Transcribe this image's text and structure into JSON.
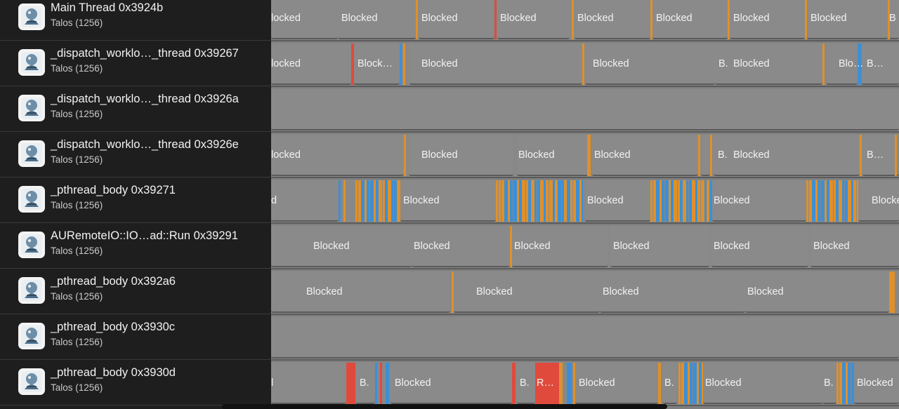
{
  "colors": {
    "sidebar_bg": "#1e1e1e",
    "lane_bg": "#888888",
    "blocked_segment": "#8a8a8a",
    "orange": "#e0902a",
    "blue": "#3c8fd6",
    "red": "#e04a3c",
    "white_text": "#f2f2f2"
  },
  "threads": [
    {
      "name": "Main Thread  0x3924b",
      "process": "Talos (1256)"
    },
    {
      "name": "_dispatch_worklo…_thread  0x39267",
      "process": "Talos (1256)"
    },
    {
      "name": "_dispatch_worklo…_thread  0x3926a",
      "process": "Talos (1256)"
    },
    {
      "name": "_dispatch_worklo…_thread  0x3926e",
      "process": "Talos (1256)"
    },
    {
      "name": "_pthread_body  0x39271",
      "process": "Talos (1256)"
    },
    {
      "name": "AURemoteIO::IO…ad::Run  0x39291",
      "process": "Talos (1256)"
    },
    {
      "name": "_pthread_body  0x392a6",
      "process": "Talos (1256)"
    },
    {
      "name": "_pthread_body  0x3930c",
      "process": "Talos (1256)"
    },
    {
      "name": "_pthread_body  0x3930d",
      "process": "Talos (1256)"
    }
  ],
  "lanes": [
    {
      "labels": [
        "locked",
        "Blocked",
        "Blocked",
        "Blocked",
        "Blocked",
        "Blocked",
        "Blocked",
        "Blocked",
        "B"
      ]
    },
    {
      "labels": [
        "locked",
        "Block…",
        "Blocked",
        "Blocked",
        "B.",
        "Blocked",
        "Blo…",
        "B…"
      ]
    },
    {
      "labels": []
    },
    {
      "labels": [
        "locked",
        "Blocked",
        "Blocked",
        "Blocked",
        "B.",
        "Blocked",
        "B…"
      ]
    },
    {
      "labels": [
        "d",
        "Blocked",
        "Blocked",
        "Blocked",
        "Blocke"
      ]
    },
    {
      "labels": [
        "Blocked",
        "Blocked",
        "Blocked",
        "Blocked",
        "Blocked",
        "Blocked"
      ]
    },
    {
      "labels": [
        "Blocked",
        "Blocked",
        "Blocked",
        "Blocked"
      ]
    },
    {
      "labels": []
    },
    {
      "labels": [
        "l",
        "B.",
        "Blocked",
        "B.",
        "R…",
        "Blocked",
        "B.",
        "Blocked",
        "B.",
        "Blocked"
      ]
    }
  ]
}
